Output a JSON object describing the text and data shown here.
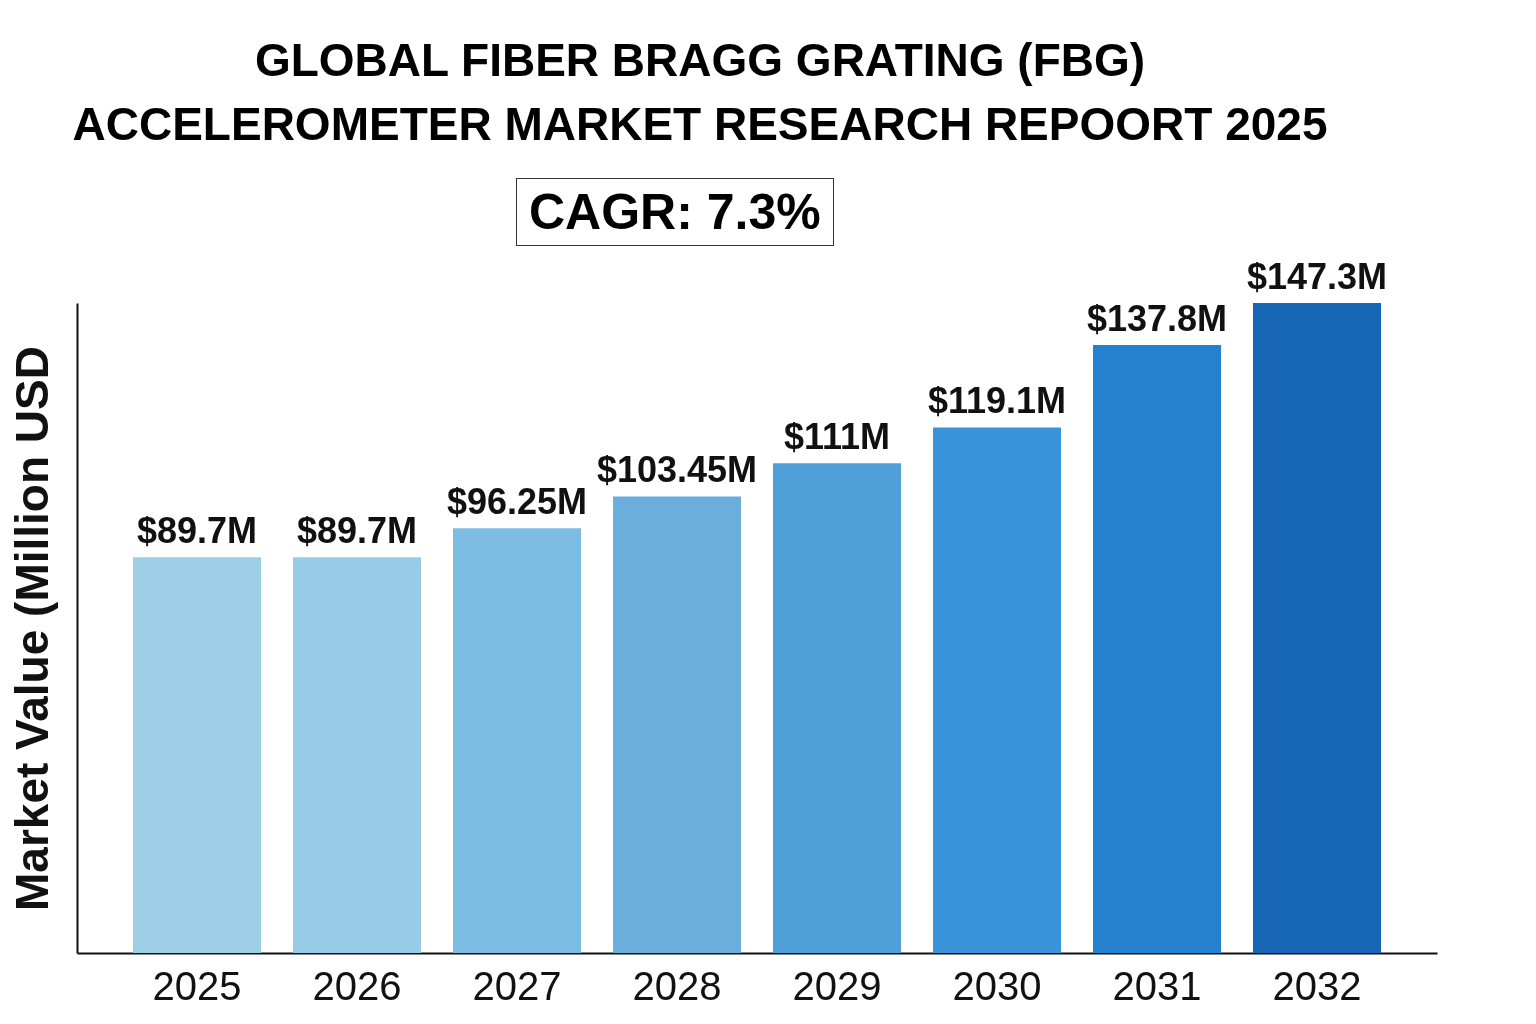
{
  "chart_data": {
    "type": "bar",
    "title": [
      "GLOBAL FIBER BRAGG GRATING (FBG)",
      "ACCELEROMETER MARKET RESEARCH REPOORT 2025"
    ],
    "annotations": [
      "CAGR: 7.3%"
    ],
    "ylabel": "Market Value (Million USD",
    "categories": [
      "2025",
      "2026",
      "2027",
      "2028",
      "2029",
      "2030",
      "2031",
      "2032"
    ],
    "values": [
      89.7,
      89.7,
      96.25,
      103.45,
      111,
      119.1,
      137.8,
      147.3
    ],
    "value_labels": [
      "$89.7M",
      "$89.7M",
      "$96.25M",
      "$103.45M",
      "$111M",
      "$119.1M",
      "$137.8M",
      "$147.3M"
    ],
    "colors": [
      "#9ccfe6",
      "#96cce6",
      "#7dbde3",
      "#6aafdc",
      "#4f9fd8",
      "#3a92d8",
      "#2680d0",
      "#1765b5"
    ]
  }
}
